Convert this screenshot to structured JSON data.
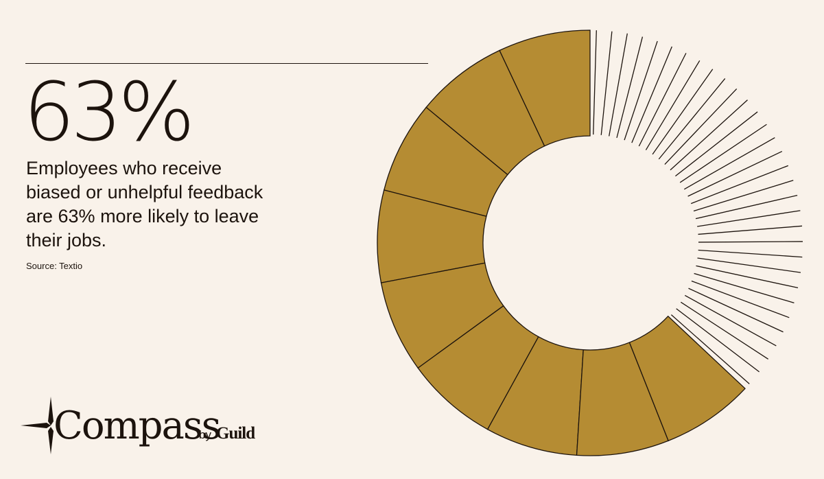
{
  "headline": {
    "stat": "63%",
    "description": "Employees who receive biased or unhelpful feedback are 63% more likely to leave their jobs.",
    "source": "Source: Textio"
  },
  "brand": {
    "name": "Compass",
    "by": "by",
    "company": "Guild",
    "icon": "compass-star-icon"
  },
  "colors": {
    "background": "#f9f2ea",
    "filled": "#b58c33",
    "ink": "#1c130d"
  },
  "chart_data": {
    "type": "pie",
    "style": "donut",
    "filled_percent": 63,
    "unfilled_percent": 37,
    "filled_segments": 9,
    "unfilled_ticks": 32,
    "series": [
      {
        "values": [
          63,
          37
        ]
      }
    ]
  }
}
